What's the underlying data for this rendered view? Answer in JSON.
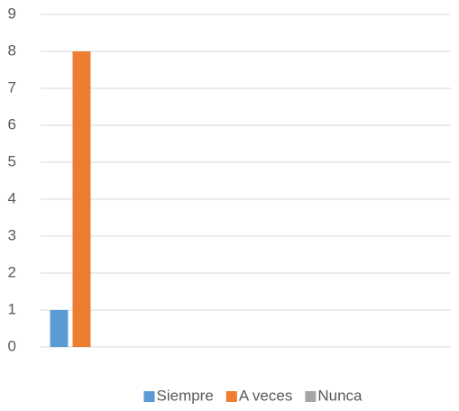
{
  "chart_data": {
    "type": "bar",
    "categories": [
      null
    ],
    "series": [
      {
        "name": "Siempre",
        "color": "#5b9bd5",
        "values": [
          1
        ]
      },
      {
        "name": "A veces",
        "color": "#ed7d31",
        "values": [
          8
        ]
      },
      {
        "name": "Nunca",
        "color": "#a5a5a5",
        "values": [
          0
        ]
      }
    ],
    "ylim": [
      0,
      9
    ],
    "yticks": [
      0,
      1,
      2,
      3,
      4,
      5,
      6,
      7,
      8,
      9
    ],
    "grid": true,
    "legend": "bottom"
  }
}
